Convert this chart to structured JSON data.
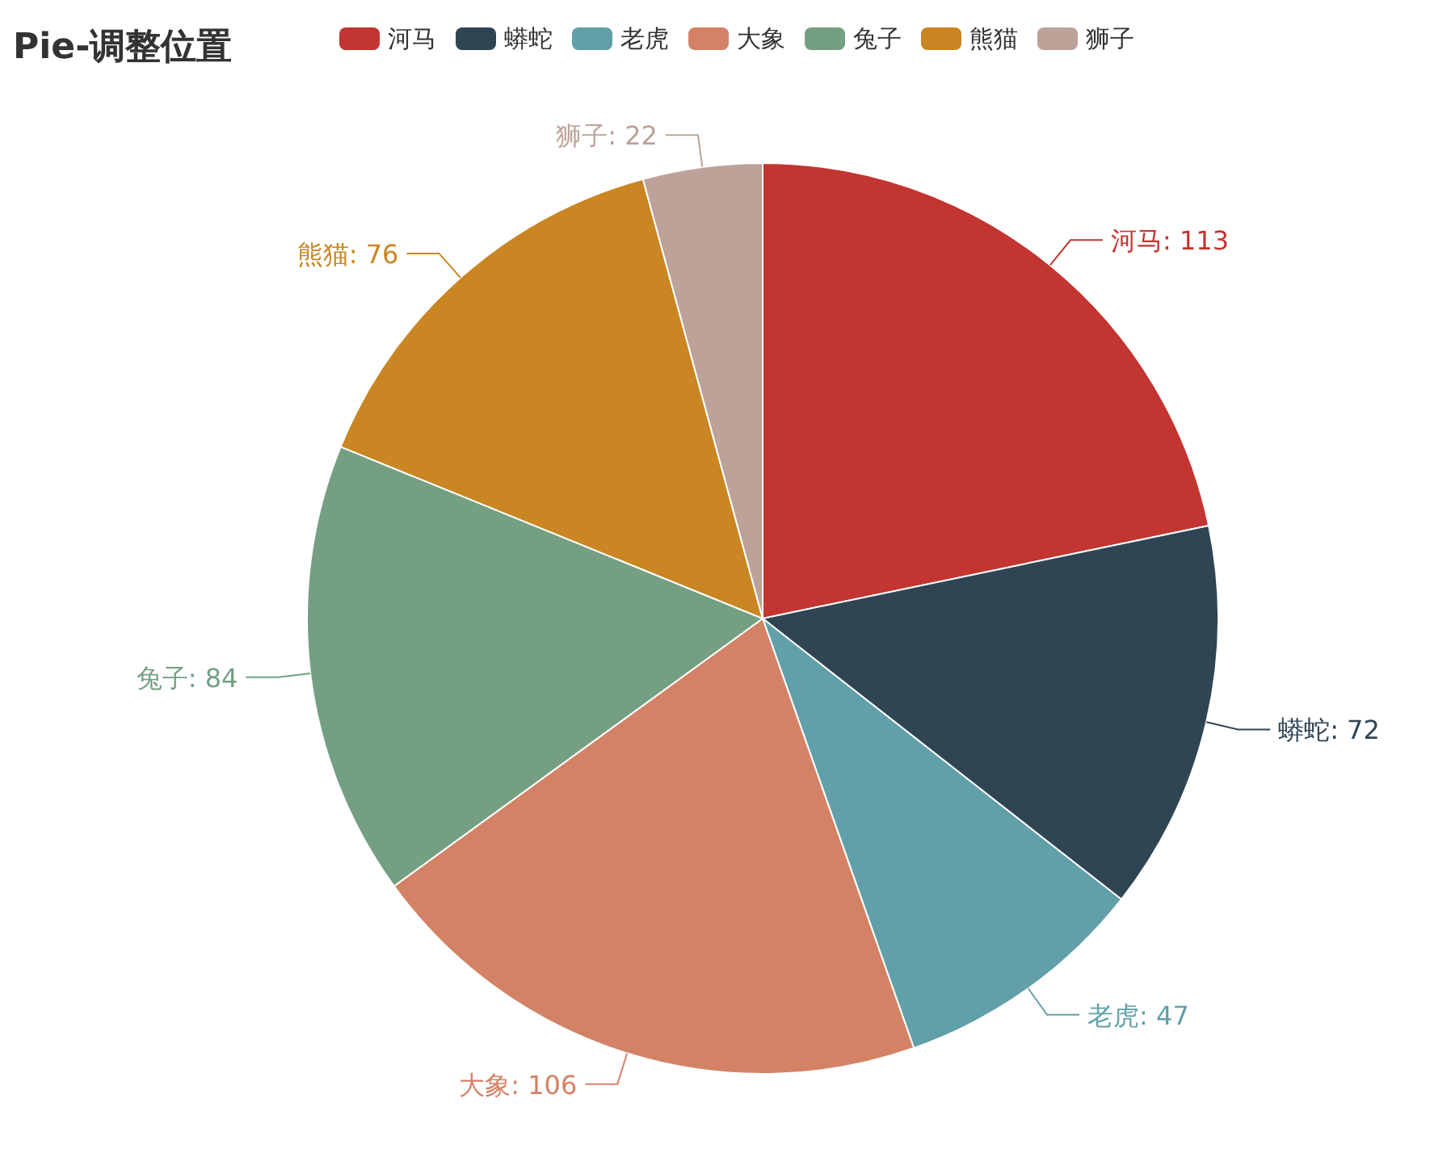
{
  "chart_data": {
    "type": "pie",
    "title": "Pie-调整位置",
    "legend": "top",
    "categories": [
      "河马",
      "蟒蛇",
      "老虎",
      "大象",
      "兔子",
      "熊猫",
      "狮子"
    ],
    "values": [
      113,
      72,
      47,
      106,
      84,
      76,
      22
    ],
    "value_labels": [
      "河马: 113",
      "蟒蛇: 72",
      "老虎: 47",
      "大象: 106",
      "兔子: 84",
      "熊猫: 76",
      "狮子: 22"
    ],
    "colors": [
      "#c23531",
      "#2f4554",
      "#61a0a8",
      "#d48265",
      "#749f83",
      "#ca8622",
      "#bda29a"
    ]
  }
}
